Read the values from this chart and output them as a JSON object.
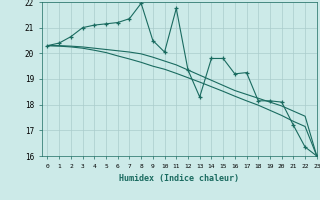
{
  "xlabel": "Humidex (Indice chaleur)",
  "background_color": "#cceae8",
  "grid_color": "#aacccc",
  "line_color": "#1a6b60",
  "x_values": [
    0,
    1,
    2,
    3,
    4,
    5,
    6,
    7,
    8,
    9,
    10,
    11,
    12,
    13,
    14,
    15,
    16,
    17,
    18,
    19,
    20,
    21,
    22,
    23
  ],
  "series1": [
    20.3,
    20.4,
    20.65,
    21.0,
    21.1,
    21.15,
    21.2,
    21.35,
    21.95,
    20.5,
    20.05,
    21.75,
    19.35,
    18.3,
    19.8,
    19.8,
    19.2,
    19.25,
    18.15,
    18.15,
    18.1,
    17.2,
    16.35,
    16.0
  ],
  "series2": [
    20.3,
    20.3,
    20.28,
    20.25,
    20.2,
    20.15,
    20.1,
    20.05,
    19.98,
    19.85,
    19.7,
    19.55,
    19.35,
    19.15,
    18.95,
    18.75,
    18.55,
    18.4,
    18.25,
    18.1,
    17.95,
    17.75,
    17.55,
    16.0
  ],
  "series3": [
    20.3,
    20.28,
    20.25,
    20.2,
    20.12,
    20.03,
    19.9,
    19.78,
    19.65,
    19.5,
    19.38,
    19.22,
    19.05,
    18.88,
    18.7,
    18.52,
    18.33,
    18.15,
    17.98,
    17.78,
    17.58,
    17.35,
    17.15,
    16.0
  ],
  "ylim": [
    16,
    22
  ],
  "xlim": [
    -0.5,
    23
  ],
  "yticks": [
    16,
    17,
    18,
    19,
    20,
    21,
    22
  ],
  "xticks": [
    0,
    1,
    2,
    3,
    4,
    5,
    6,
    7,
    8,
    9,
    10,
    11,
    12,
    13,
    14,
    15,
    16,
    17,
    18,
    19,
    20,
    21,
    22,
    23
  ]
}
